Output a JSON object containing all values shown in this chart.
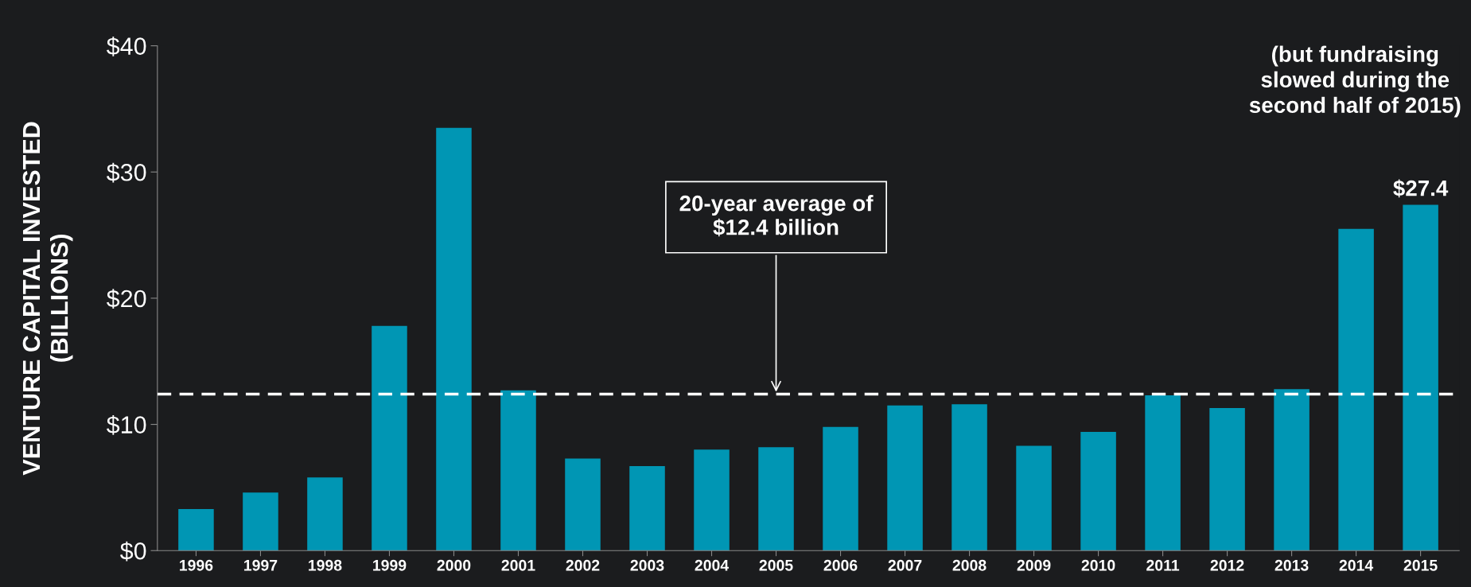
{
  "chart_data": {
    "type": "bar",
    "ylabel": "VENTURE CAPITAL INVESTED\n(BILLIONS)",
    "categories": [
      "1996",
      "1997",
      "1998",
      "1999",
      "2000",
      "2001",
      "2002",
      "2003",
      "2004",
      "2005",
      "2006",
      "2007",
      "2008",
      "2009",
      "2010",
      "2011",
      "2012",
      "2013",
      "2014",
      "2015"
    ],
    "values": [
      3.3,
      4.6,
      5.8,
      17.8,
      33.5,
      12.7,
      7.3,
      6.7,
      8.0,
      8.2,
      9.8,
      11.5,
      11.6,
      8.3,
      9.4,
      12.3,
      11.3,
      12.8,
      25.5,
      27.4
    ],
    "value_labels": [
      null,
      null,
      null,
      null,
      null,
      null,
      null,
      null,
      null,
      null,
      null,
      null,
      null,
      null,
      null,
      null,
      null,
      null,
      null,
      "$27.4"
    ],
    "color": "#0096b4",
    "ylim": [
      0,
      40
    ],
    "yticks": [
      {
        "value": 0,
        "label": "$0"
      },
      {
        "value": 10,
        "label": "$10"
      },
      {
        "value": 20,
        "label": "$20"
      },
      {
        "value": 30,
        "label": "$30"
      },
      {
        "value": 40,
        "label": "$40"
      }
    ],
    "ref_lines": [
      {
        "axis": "y",
        "value": 12.4,
        "color": "#ffffff",
        "line_style": "dashed"
      }
    ],
    "annotations": [
      {
        "text": "20-year average of\n$12.4 billion",
        "x": "2005",
        "y": 12.4
      },
      "(but fundraising\nslowed during the\nsecond half of 2015)"
    ],
    "grid": false
  }
}
